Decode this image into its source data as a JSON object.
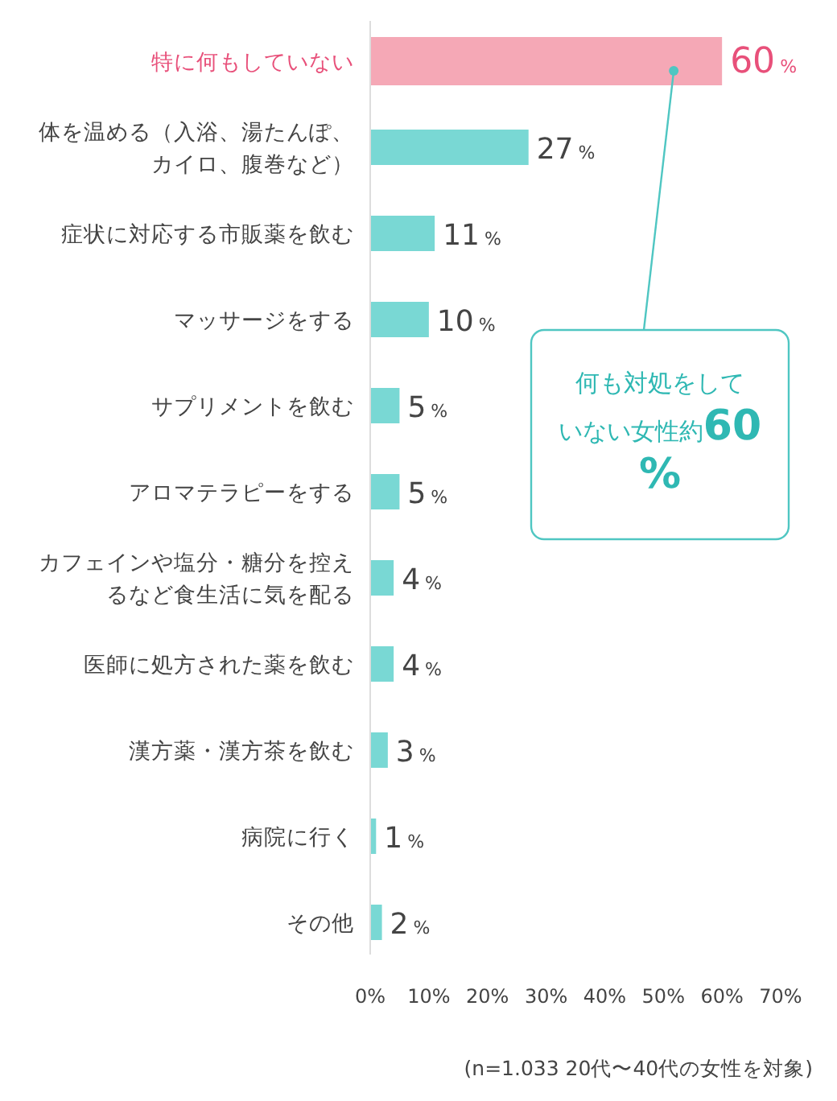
{
  "chart_data": {
    "type": "bar",
    "orientation": "horizontal",
    "categories": [
      "特に何もしていない",
      "体を温める（入浴、湯たんぽ、カイロ、腹巻など）",
      "症状に対応する市販薬を飲む",
      "マッサージをする",
      "サプリメントを飲む",
      "アロマテラピーをする",
      "カフェインや塩分・糖分を控えるなど食生活に気を配る",
      "医師に処方された薬を飲む",
      "漢方薬・漢方茶を飲む",
      "病院に行く",
      "その他"
    ],
    "values": [
      60,
      27,
      11,
      10,
      5,
      5,
      4,
      4,
      3,
      1,
      2
    ],
    "value_labels": [
      "60%",
      "27%",
      "11%",
      "10%",
      "5%",
      "5%",
      "4%",
      "4%",
      "3%",
      "1%",
      "2%"
    ],
    "colors": [
      "#f5a8b6",
      "#79d8d4",
      "#79d8d4",
      "#79d8d4",
      "#79d8d4",
      "#79d8d4",
      "#79d8d4",
      "#79d8d4",
      "#79d8d4",
      "#79d8d4",
      "#79d8d4"
    ],
    "xlim": [
      0,
      70
    ],
    "xticks": [
      {
        "value": 0,
        "label": "0%"
      },
      {
        "value": 10,
        "label": "10%"
      },
      {
        "value": 20,
        "label": "20%"
      },
      {
        "value": 30,
        "label": "30%"
      },
      {
        "value": 40,
        "label": "40%"
      },
      {
        "value": 50,
        "label": "50%"
      },
      {
        "value": 60,
        "label": "60%"
      },
      {
        "value": 70,
        "label": "70%"
      }
    ],
    "annotations": [
      "何も対処をしていない女性約60%",
      "(n=1.033 20代〜40代の女性を対象)"
    ]
  }
}
